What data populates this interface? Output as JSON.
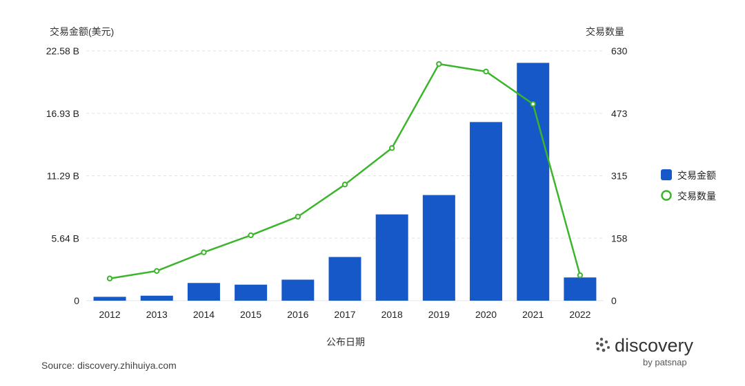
{
  "chart_data": {
    "type": "bar+line",
    "title": "",
    "xlabel": "公布日期",
    "ylabel_left": "交易金额(美元)",
    "ylabel_right": "交易数量",
    "categories": [
      "2012",
      "2013",
      "2014",
      "2015",
      "2016",
      "2017",
      "2018",
      "2019",
      "2020",
      "2021",
      "2022"
    ],
    "left_ticks": [
      "0",
      "5.64 B",
      "11.29 B",
      "16.93 B",
      "22.58 B"
    ],
    "right_ticks": [
      "0",
      "158",
      "315",
      "473",
      "630"
    ],
    "ylim_left": [
      0,
      22.58
    ],
    "ylim_right": [
      0,
      630
    ],
    "grid": true,
    "legend_position": "right",
    "series": [
      {
        "name": "交易金额",
        "type": "bar",
        "axis": "left",
        "unit": "B USD",
        "color": "#1758c8",
        "values": [
          0.35,
          0.45,
          1.6,
          1.45,
          1.9,
          3.95,
          7.8,
          9.55,
          16.15,
          21.5,
          2.1
        ]
      },
      {
        "name": "交易数量",
        "type": "line",
        "axis": "right",
        "color": "#3cb52c",
        "values": [
          56,
          75,
          122,
          165,
          212,
          293,
          385,
          597,
          578,
          496,
          64
        ]
      }
    ]
  },
  "source": "Source: discovery.zhihuiya.com",
  "brand": {
    "name": "discovery",
    "sub": "by patsnap",
    "icon": "patsnap-logo-icon"
  }
}
